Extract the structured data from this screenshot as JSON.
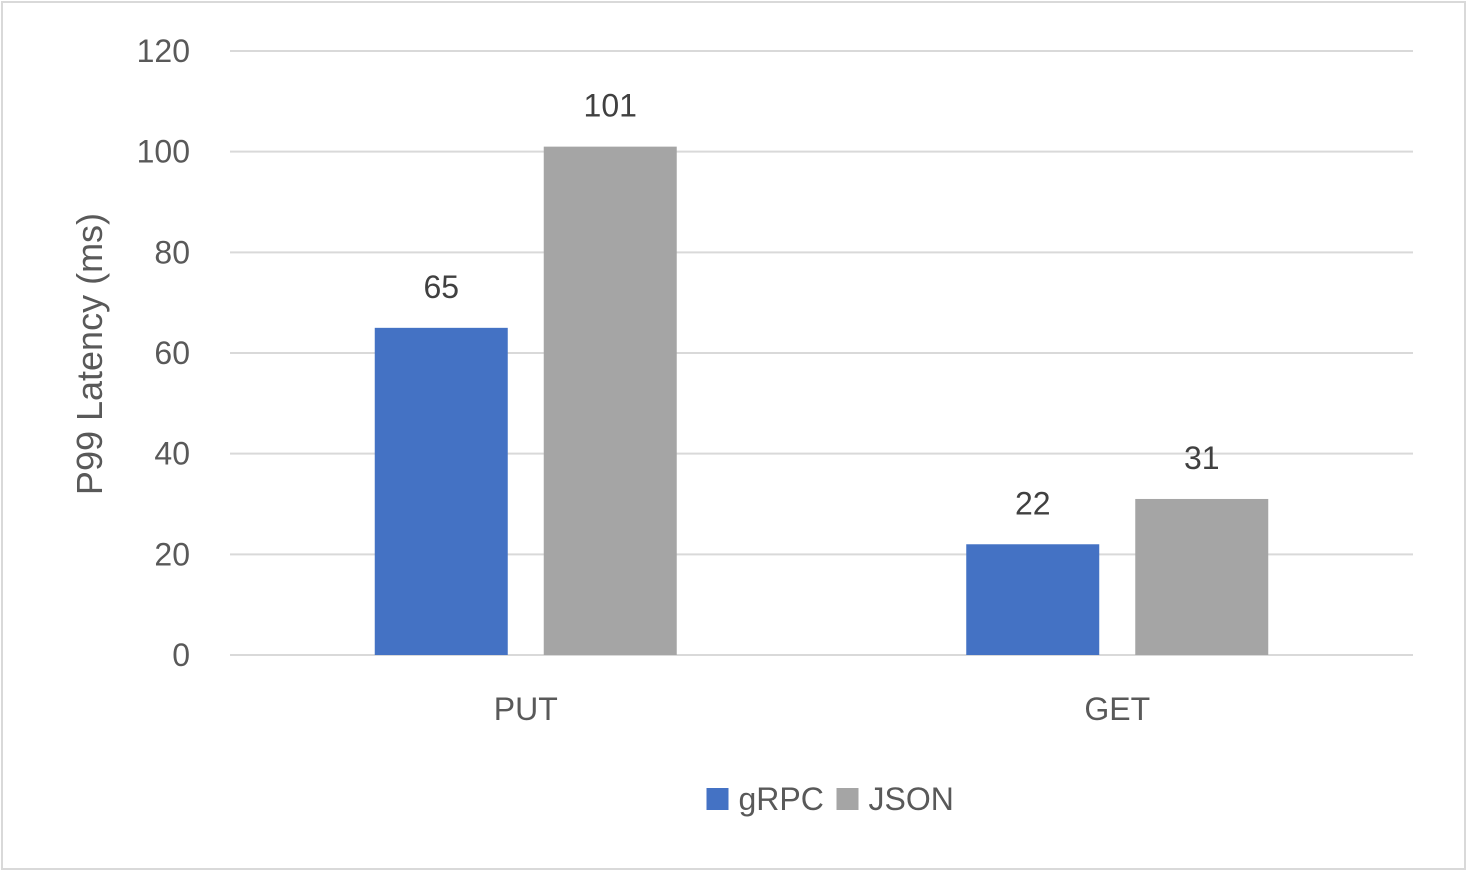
{
  "chart_data": {
    "type": "bar",
    "categories": [
      "PUT",
      "GET"
    ],
    "series": [
      {
        "name": "gRPC",
        "values": [
          65,
          22
        ],
        "color": "#4472c4"
      },
      {
        "name": "JSON",
        "values": [
          101,
          31
        ],
        "color": "#a5a5a5"
      }
    ],
    "ylabel": "P99 Latency  (ms)",
    "ylim": [
      0,
      120
    ],
    "yticks": [
      0,
      20,
      40,
      60,
      80,
      100,
      120
    ],
    "grid": true,
    "legend_position": "bottom-center",
    "colors": {
      "grid": "#d9d9d9",
      "tick_text": "#595959",
      "data_label_text": "#404040"
    }
  }
}
